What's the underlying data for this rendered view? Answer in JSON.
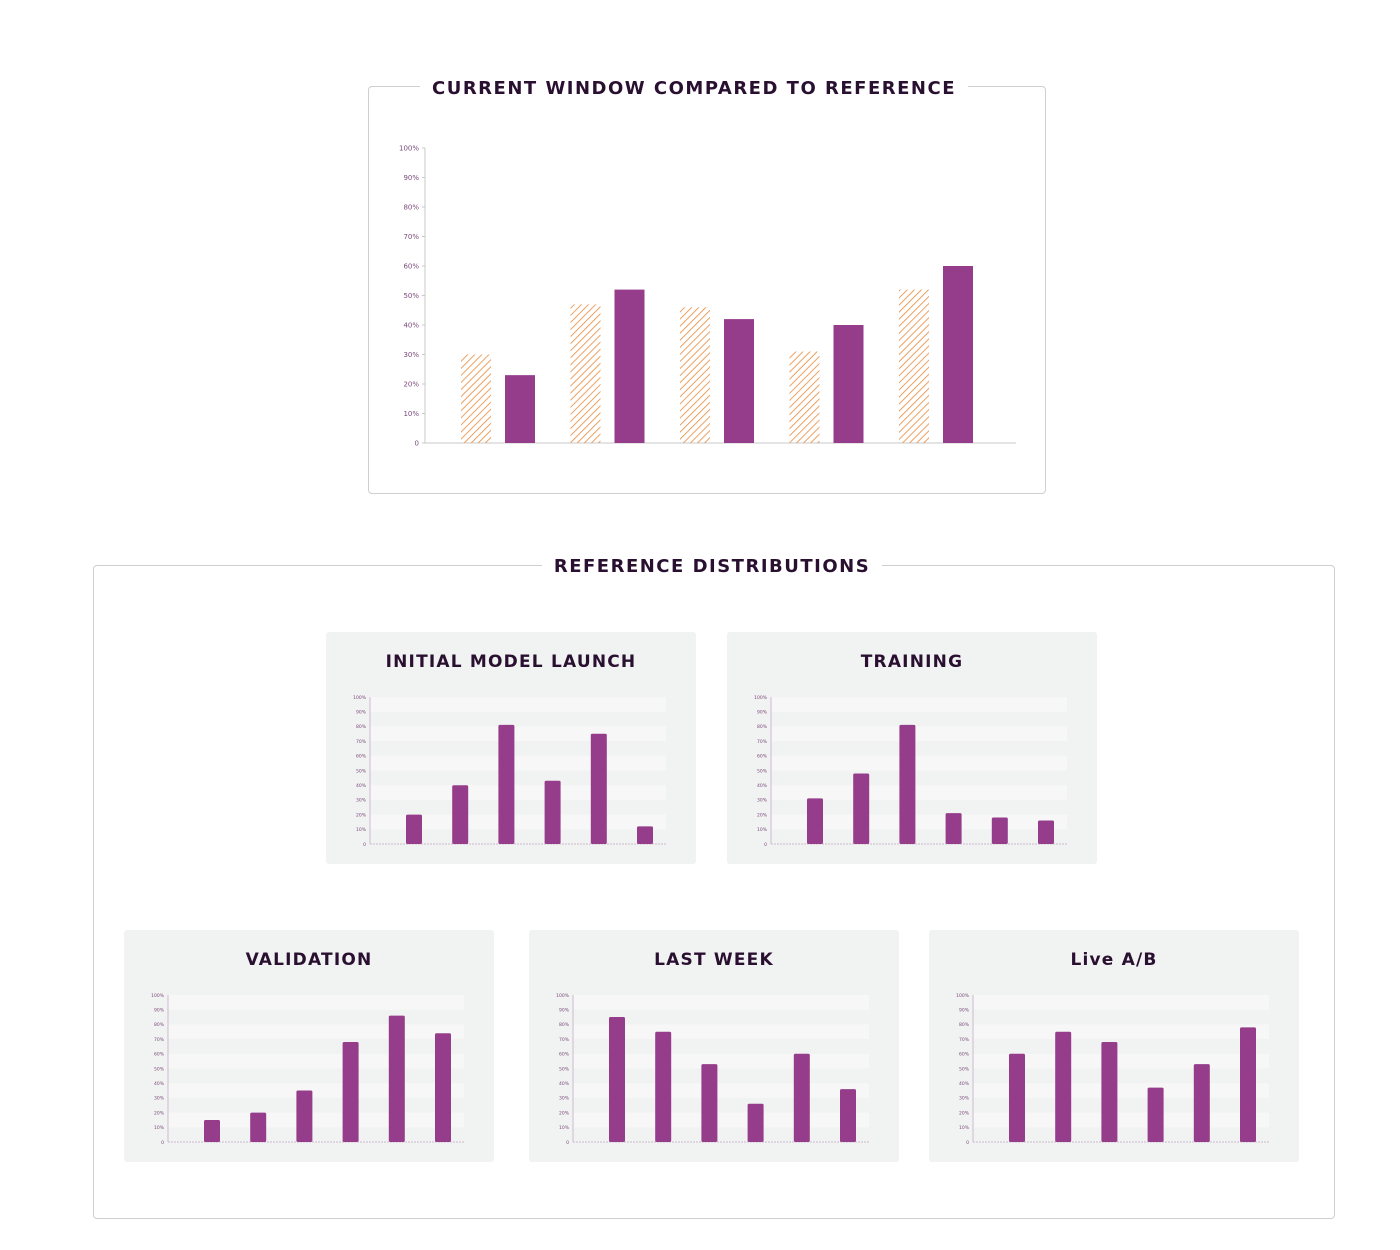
{
  "main_title": "CURRENT WINDOW COMPARED TO REFERENCE",
  "ref_title": "REFERENCE DISTRIBUTIONS",
  "colors": {
    "current": "#953d8a",
    "reference": "#e8893a",
    "axis": "#c9c9c9",
    "card_bg": "#f1f2f2"
  },
  "chart_data": [
    {
      "type": "bar",
      "title": "CURRENT WINDOW COMPARED TO REFERENCE",
      "categories": [
        "",
        "",
        "",
        "",
        ""
      ],
      "series": [
        {
          "style": "hatched",
          "values": [
            30,
            47,
            46,
            31,
            52
          ]
        },
        {
          "style": "solid",
          "values": [
            23,
            52,
            42,
            40,
            60
          ]
        }
      ],
      "yticks": [
        "0",
        "10%",
        "20%",
        "30%",
        "40%",
        "50%",
        "60%",
        "70%",
        "80%",
        "90%",
        "100%"
      ],
      "ylim": [
        0,
        100
      ],
      "grid": false
    },
    {
      "type": "bar",
      "title": "INITIAL MODEL LAUNCH",
      "values": [
        20,
        40,
        81,
        43,
        75,
        12
      ],
      "yticks": [
        "0",
        "10%",
        "20%",
        "30%",
        "40%",
        "50%",
        "60%",
        "70%",
        "80%",
        "90%",
        "100%"
      ],
      "ylim": [
        0,
        100
      ],
      "grid": "banded"
    },
    {
      "type": "bar",
      "title": "TRAINING",
      "values": [
        31,
        48,
        81,
        21,
        18,
        16
      ],
      "yticks": [
        "0",
        "10%",
        "20%",
        "30%",
        "40%",
        "50%",
        "60%",
        "70%",
        "80%",
        "90%",
        "100%"
      ],
      "ylim": [
        0,
        100
      ],
      "grid": "banded"
    },
    {
      "type": "bar",
      "title": "VALIDATION",
      "values": [
        15,
        20,
        35,
        68,
        86,
        74
      ],
      "yticks": [
        "0",
        "10%",
        "20%",
        "30%",
        "40%",
        "50%",
        "60%",
        "70%",
        "80%",
        "90%",
        "100%"
      ],
      "ylim": [
        0,
        100
      ],
      "grid": "banded"
    },
    {
      "type": "bar",
      "title": "LAST WEEK",
      "values": [
        85,
        75,
        53,
        26,
        60,
        36
      ],
      "yticks": [
        "0",
        "10%",
        "20%",
        "30%",
        "40%",
        "50%",
        "60%",
        "70%",
        "80%",
        "90%",
        "100%"
      ],
      "ylim": [
        0,
        100
      ],
      "grid": "banded"
    },
    {
      "type": "bar",
      "title": "Live A/B",
      "values": [
        60,
        75,
        68,
        37,
        53,
        78
      ],
      "yticks": [
        "0",
        "10%",
        "20%",
        "30%",
        "40%",
        "50%",
        "60%",
        "70%",
        "80%",
        "90%",
        "100%"
      ],
      "ylim": [
        0,
        100
      ],
      "grid": "banded"
    }
  ]
}
